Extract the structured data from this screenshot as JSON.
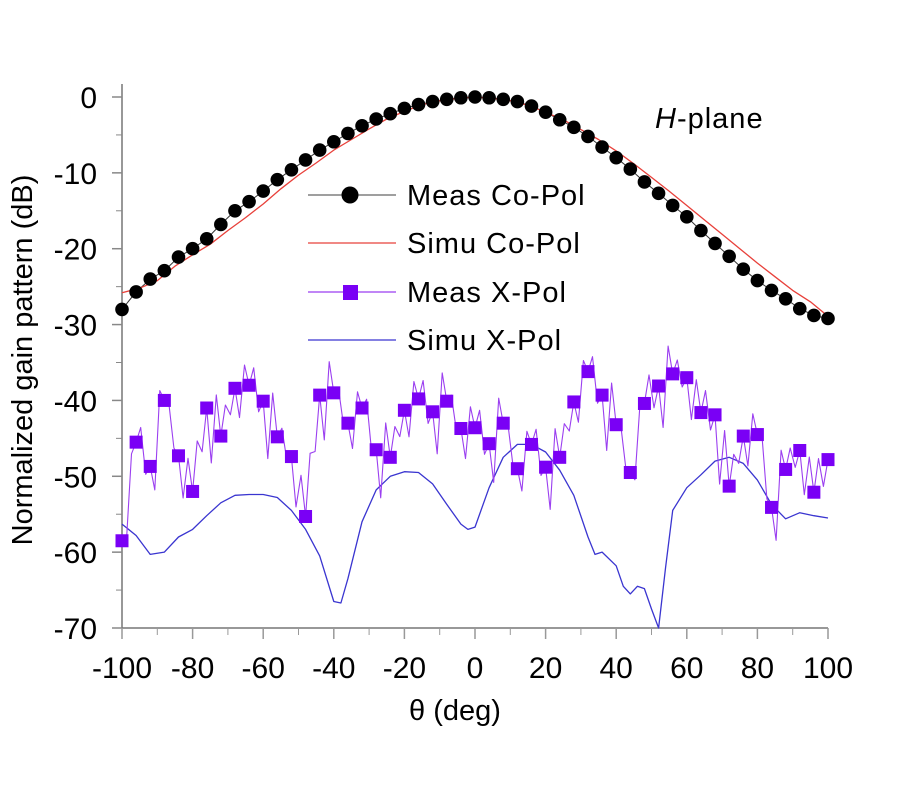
{
  "chart_data": {
    "type": "line",
    "title": "",
    "annotation": {
      "italic": "H",
      "rest": "-plane"
    },
    "xlabel": "θ (deg)",
    "ylabel": "Normalized gain pattern (dB)",
    "xlim": [
      -100,
      100
    ],
    "ylim": [
      -70,
      0
    ],
    "xticks": [
      -100,
      -80,
      -60,
      -40,
      -20,
      0,
      20,
      40,
      60,
      80,
      100
    ],
    "yticks": [
      0,
      -10,
      -20,
      -30,
      -40,
      -50,
      -60,
      -70
    ],
    "xtick_labels": [
      "-100",
      "-80",
      "-60",
      "-40",
      "-20",
      "0",
      "20",
      "40",
      "60",
      "80",
      "100"
    ],
    "ytick_labels": [
      "0",
      "-10",
      "-20",
      "-30",
      "-40",
      "-50",
      "-60",
      "-70"
    ],
    "grid": false,
    "legend": {
      "position": "upper-center",
      "entries": [
        {
          "label": "Meas Co-Pol",
          "line_color": "#555555",
          "marker": "circle",
          "marker_color": "#000000"
        },
        {
          "label": "Simu Co-Pol",
          "line_color": "#e8403a",
          "marker": "none"
        },
        {
          "label": "Meas X-Pol",
          "line_color": "#9b3ff0",
          "marker": "square",
          "marker_color": "#7a00f5"
        },
        {
          "label": "Simu X-Pol",
          "line_color": "#3a35d0",
          "marker": "none"
        }
      ]
    },
    "series": [
      {
        "name": "Meas Co-Pol",
        "x": [
          -100,
          -96,
          -92,
          -88,
          -84,
          -80,
          -76,
          -72,
          -68,
          -64,
          -60,
          -56,
          -52,
          -48,
          -44,
          -40,
          -36,
          -32,
          -28,
          -24,
          -20,
          -16,
          -12,
          -8,
          -4,
          0,
          4,
          8,
          12,
          16,
          20,
          24,
          28,
          32,
          36,
          40,
          44,
          48,
          52,
          56,
          60,
          64,
          68,
          72,
          76,
          80,
          84,
          88,
          92,
          96,
          100
        ],
        "y": [
          -28,
          -25.7,
          -24.0,
          -22.9,
          -21.1,
          -20.0,
          -18.7,
          -16.8,
          -15.0,
          -13.8,
          -12.4,
          -10.9,
          -9.6,
          -8.3,
          -7.0,
          -5.9,
          -4.8,
          -3.8,
          -2.9,
          -2.2,
          -1.5,
          -1.0,
          -0.6,
          -0.3,
          -0.1,
          0,
          -0.1,
          -0.3,
          -0.6,
          -1.2,
          -2.0,
          -3.0,
          -4.0,
          -5.2,
          -6.6,
          -8.0,
          -9.5,
          -11.2,
          -12.7,
          -14.3,
          -15.8,
          -17.6,
          -19.3,
          -21.0,
          -22.7,
          -24.2,
          -25.5,
          -26.6,
          -27.9,
          -28.8,
          -29.2
        ]
      },
      {
        "name": "Simu Co-Pol",
        "x": [
          -100,
          -95,
          -90,
          -85,
          -80,
          -75,
          -70,
          -65,
          -60,
          -55,
          -50,
          -45,
          -40,
          -35,
          -30,
          -25,
          -20,
          -15,
          -10,
          -5,
          0,
          5,
          10,
          15,
          20,
          25,
          30,
          35,
          40,
          45,
          50,
          55,
          60,
          65,
          70,
          75,
          80,
          85,
          90,
          95,
          100
        ],
        "y": [
          -25.8,
          -25.2,
          -24.2,
          -22.3,
          -20.8,
          -19.4,
          -17.6,
          -15.9,
          -14.1,
          -12.1,
          -10.3,
          -8.7,
          -7.0,
          -5.6,
          -4.2,
          -2.9,
          -1.9,
          -1.0,
          -0.5,
          -0.2,
          0,
          -0.2,
          -0.5,
          -1.1,
          -2.0,
          -3.0,
          -4.3,
          -5.6,
          -7.1,
          -8.8,
          -10.6,
          -12.4,
          -14.3,
          -16.2,
          -18.1,
          -20.0,
          -21.9,
          -23.7,
          -25.5,
          -27.0,
          -28.9
        ]
      },
      {
        "name": "Meas X-Pol",
        "x": [
          -100,
          -96,
          -92,
          -88,
          -84,
          -80,
          -76,
          -72,
          -68,
          -64,
          -60,
          -56,
          -52,
          -48,
          -44,
          -40,
          -36,
          -32,
          -28,
          -24,
          -20,
          -16,
          -12,
          -8,
          -4,
          0,
          4,
          8,
          12,
          16,
          20,
          24,
          28,
          32,
          36,
          40,
          44,
          48,
          52,
          56,
          60,
          64,
          68,
          72,
          76,
          80,
          84,
          88,
          92,
          96,
          100
        ],
        "y": [
          -58.5,
          -45.5,
          -48.7,
          -40.0,
          -47.3,
          -52.0,
          -41.0,
          -44.7,
          -38.4,
          -38.0,
          -40.1,
          -44.8,
          -47.4,
          -55.3,
          -39.3,
          -39.0,
          -43.0,
          -41.0,
          -46.5,
          -47.5,
          -41.3,
          -39.8,
          -41.5,
          -40.1,
          -43.7,
          -43.6,
          -45.7,
          -43.0,
          -49.0,
          -45.8,
          -48.8,
          -47.5,
          -40.2,
          -36.2,
          -39.3,
          -43.2,
          -49.5,
          -40.4,
          -38.1,
          -36.5,
          -37.0,
          -41.6,
          -41.9,
          -51.3,
          -44.7,
          -44.5,
          -54.1,
          -49.1,
          -46.6,
          -52.1,
          -47.8
        ]
      },
      {
        "name": "Simu X-Pol",
        "x": [
          -100,
          -96,
          -92,
          -88,
          -84,
          -80,
          -76,
          -72,
          -68,
          -64,
          -60,
          -56,
          -52,
          -48,
          -44,
          -40,
          -38,
          -36,
          -32,
          -28,
          -24,
          -20,
          -16,
          -12,
          -8,
          -4,
          -2,
          0,
          4,
          8,
          12,
          16,
          20,
          24,
          28,
          32,
          34,
          36,
          40,
          42,
          44,
          46,
          48,
          50,
          52,
          54,
          56,
          60,
          64,
          68,
          72,
          76,
          80,
          84,
          88,
          92,
          96,
          100
        ],
        "y": [
          -56.3,
          -57.8,
          -60.3,
          -60.0,
          -58.0,
          -57.0,
          -55.2,
          -53.5,
          -52.5,
          -52.4,
          -52.4,
          -52.8,
          -54.5,
          -57.0,
          -60.5,
          -66.5,
          -66.7,
          -63.5,
          -56.0,
          -51.8,
          -50.0,
          -49.4,
          -49.5,
          -51.0,
          -53.7,
          -56.3,
          -57.0,
          -56.7,
          -51.5,
          -47.5,
          -45.8,
          -45.8,
          -46.8,
          -49.2,
          -52.5,
          -58.0,
          -60.3,
          -60.0,
          -61.8,
          -64.5,
          -65.5,
          -64.5,
          -64.8,
          -67.5,
          -70.0,
          -62.0,
          -54.5,
          -51.5,
          -49.8,
          -48.0,
          -47.5,
          -48.3,
          -50.5,
          -53.7,
          -55.6,
          -54.8,
          -55.2,
          -55.5
        ]
      }
    ]
  }
}
